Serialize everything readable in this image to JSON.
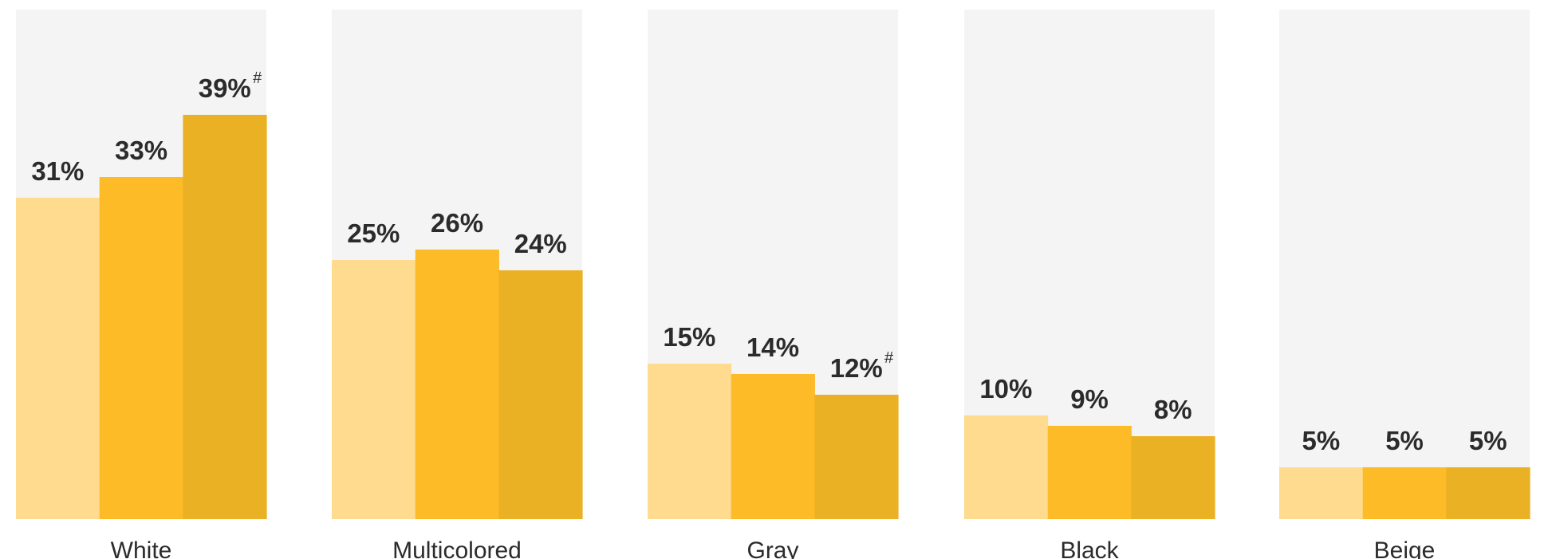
{
  "chart_data": {
    "type": "bar",
    "title": "",
    "xlabel": "",
    "ylabel": "",
    "unit": "%",
    "ylim": [
      0,
      50
    ],
    "grid": false,
    "legend": "none",
    "categories": [
      "White",
      "Multicolored",
      "Gray",
      "Black",
      "Beige"
    ],
    "series_colors": [
      "#fedb8f",
      "#fdbb27",
      "#ebb124"
    ],
    "background_color": "#f4f4f4",
    "series": [
      {
        "values": [
          31,
          25,
          15,
          10,
          5
        ],
        "labels": [
          "31%",
          "25%",
          "15%",
          "10%",
          "5%"
        ],
        "notes": [
          "",
          "",
          "",
          "",
          ""
        ]
      },
      {
        "values": [
          33,
          26,
          14,
          9,
          5
        ],
        "labels": [
          "33%",
          "26%",
          "14%",
          "9%",
          "5%"
        ],
        "notes": [
          "",
          "",
          "",
          "",
          ""
        ]
      },
      {
        "values": [
          39,
          24,
          12,
          8,
          5
        ],
        "labels": [
          "39%",
          "24%",
          "12%",
          "8%",
          "5%"
        ],
        "notes": [
          "#",
          "",
          "#",
          "",
          ""
        ]
      }
    ]
  }
}
